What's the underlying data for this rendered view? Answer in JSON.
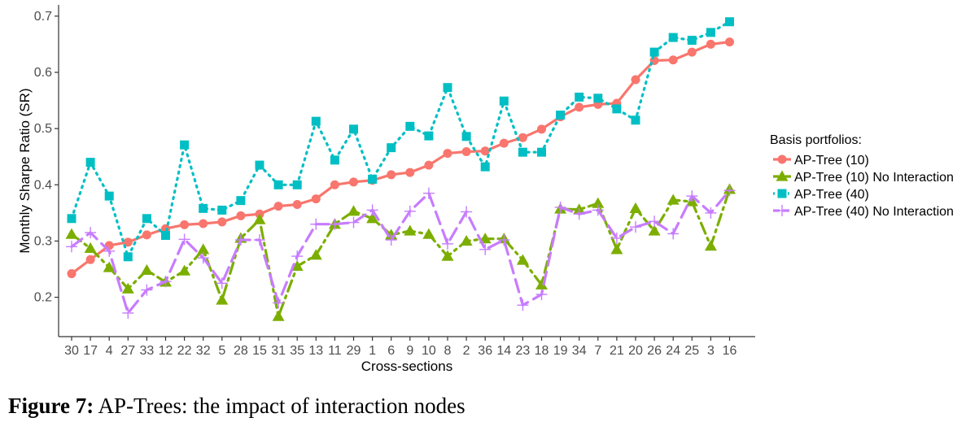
{
  "chart_data": {
    "type": "line",
    "xlabel": "Cross-sections",
    "ylabel": "Monthly Sharpe Ratio (SR)",
    "categories": [
      "30",
      "17",
      "4",
      "27",
      "33",
      "12",
      "22",
      "32",
      "5",
      "28",
      "15",
      "31",
      "35",
      "13",
      "11",
      "29",
      "1",
      "6",
      "9",
      "10",
      "8",
      "2",
      "36",
      "14",
      "23",
      "18",
      "19",
      "34",
      "7",
      "21",
      "20",
      "26",
      "24",
      "25",
      "3",
      "16"
    ],
    "ylim": [
      0.13,
      0.72
    ],
    "yticks": [
      "0.2",
      "0.3",
      "0.4",
      "0.5",
      "0.6",
      "0.7"
    ],
    "legend_title": "Basis portfolios:",
    "legend_position": "right",
    "grid": false,
    "series": [
      {
        "name": "AP-Tree (10)",
        "color": "#F8766D",
        "dash": "",
        "marker": "circle",
        "values": [
          0.242,
          0.267,
          0.292,
          0.298,
          0.311,
          0.322,
          0.329,
          0.331,
          0.334,
          0.345,
          0.348,
          0.362,
          0.365,
          0.375,
          0.4,
          0.405,
          0.408,
          0.418,
          0.422,
          0.435,
          0.456,
          0.459,
          0.46,
          0.474,
          0.484,
          0.499,
          0.521,
          0.538,
          0.543,
          0.545,
          0.587,
          0.621,
          0.622,
          0.636,
          0.65,
          0.654
        ]
      },
      {
        "name": "AP-Tree (10) No Interaction",
        "color": "#7CAE00",
        "dash": "14,6,3,6",
        "marker": "triangle",
        "values": [
          0.312,
          0.287,
          0.253,
          0.215,
          0.248,
          0.227,
          0.247,
          0.285,
          0.195,
          0.305,
          0.338,
          0.166,
          0.255,
          0.275,
          0.33,
          0.353,
          0.34,
          0.311,
          0.318,
          0.312,
          0.273,
          0.3,
          0.304,
          0.304,
          0.266,
          0.222,
          0.357,
          0.356,
          0.367,
          0.285,
          0.358,
          0.318,
          0.373,
          0.37,
          0.291,
          0.392
        ]
      },
      {
        "name": "AP-Tree (40)",
        "color": "#00BFC4",
        "dash": "2,6",
        "marker": "square",
        "values": [
          0.34,
          0.44,
          0.38,
          0.272,
          0.34,
          0.31,
          0.471,
          0.358,
          0.355,
          0.372,
          0.435,
          0.4,
          0.4,
          0.513,
          0.444,
          0.499,
          0.41,
          0.466,
          0.504,
          0.487,
          0.573,
          0.486,
          0.432,
          0.549,
          0.458,
          0.458,
          0.524,
          0.556,
          0.554,
          0.535,
          0.515,
          0.636,
          0.662,
          0.657,
          0.671,
          0.69
        ]
      },
      {
        "name": "AP-Tree (40) No Interaction",
        "color": "#C77CFF",
        "dash": "16,8",
        "marker": "plus",
        "values": [
          0.29,
          0.315,
          0.282,
          0.172,
          0.213,
          0.228,
          0.303,
          0.27,
          0.225,
          0.302,
          0.302,
          0.19,
          0.273,
          0.33,
          0.33,
          0.333,
          0.355,
          0.302,
          0.353,
          0.385,
          0.295,
          0.352,
          0.285,
          0.302,
          0.186,
          0.205,
          0.36,
          0.348,
          0.355,
          0.305,
          0.325,
          0.335,
          0.313,
          0.38,
          0.35,
          0.39
        ]
      }
    ]
  },
  "caption": {
    "label": "Figure 7:",
    "text": " AP-Trees: the impact of interaction nodes"
  }
}
